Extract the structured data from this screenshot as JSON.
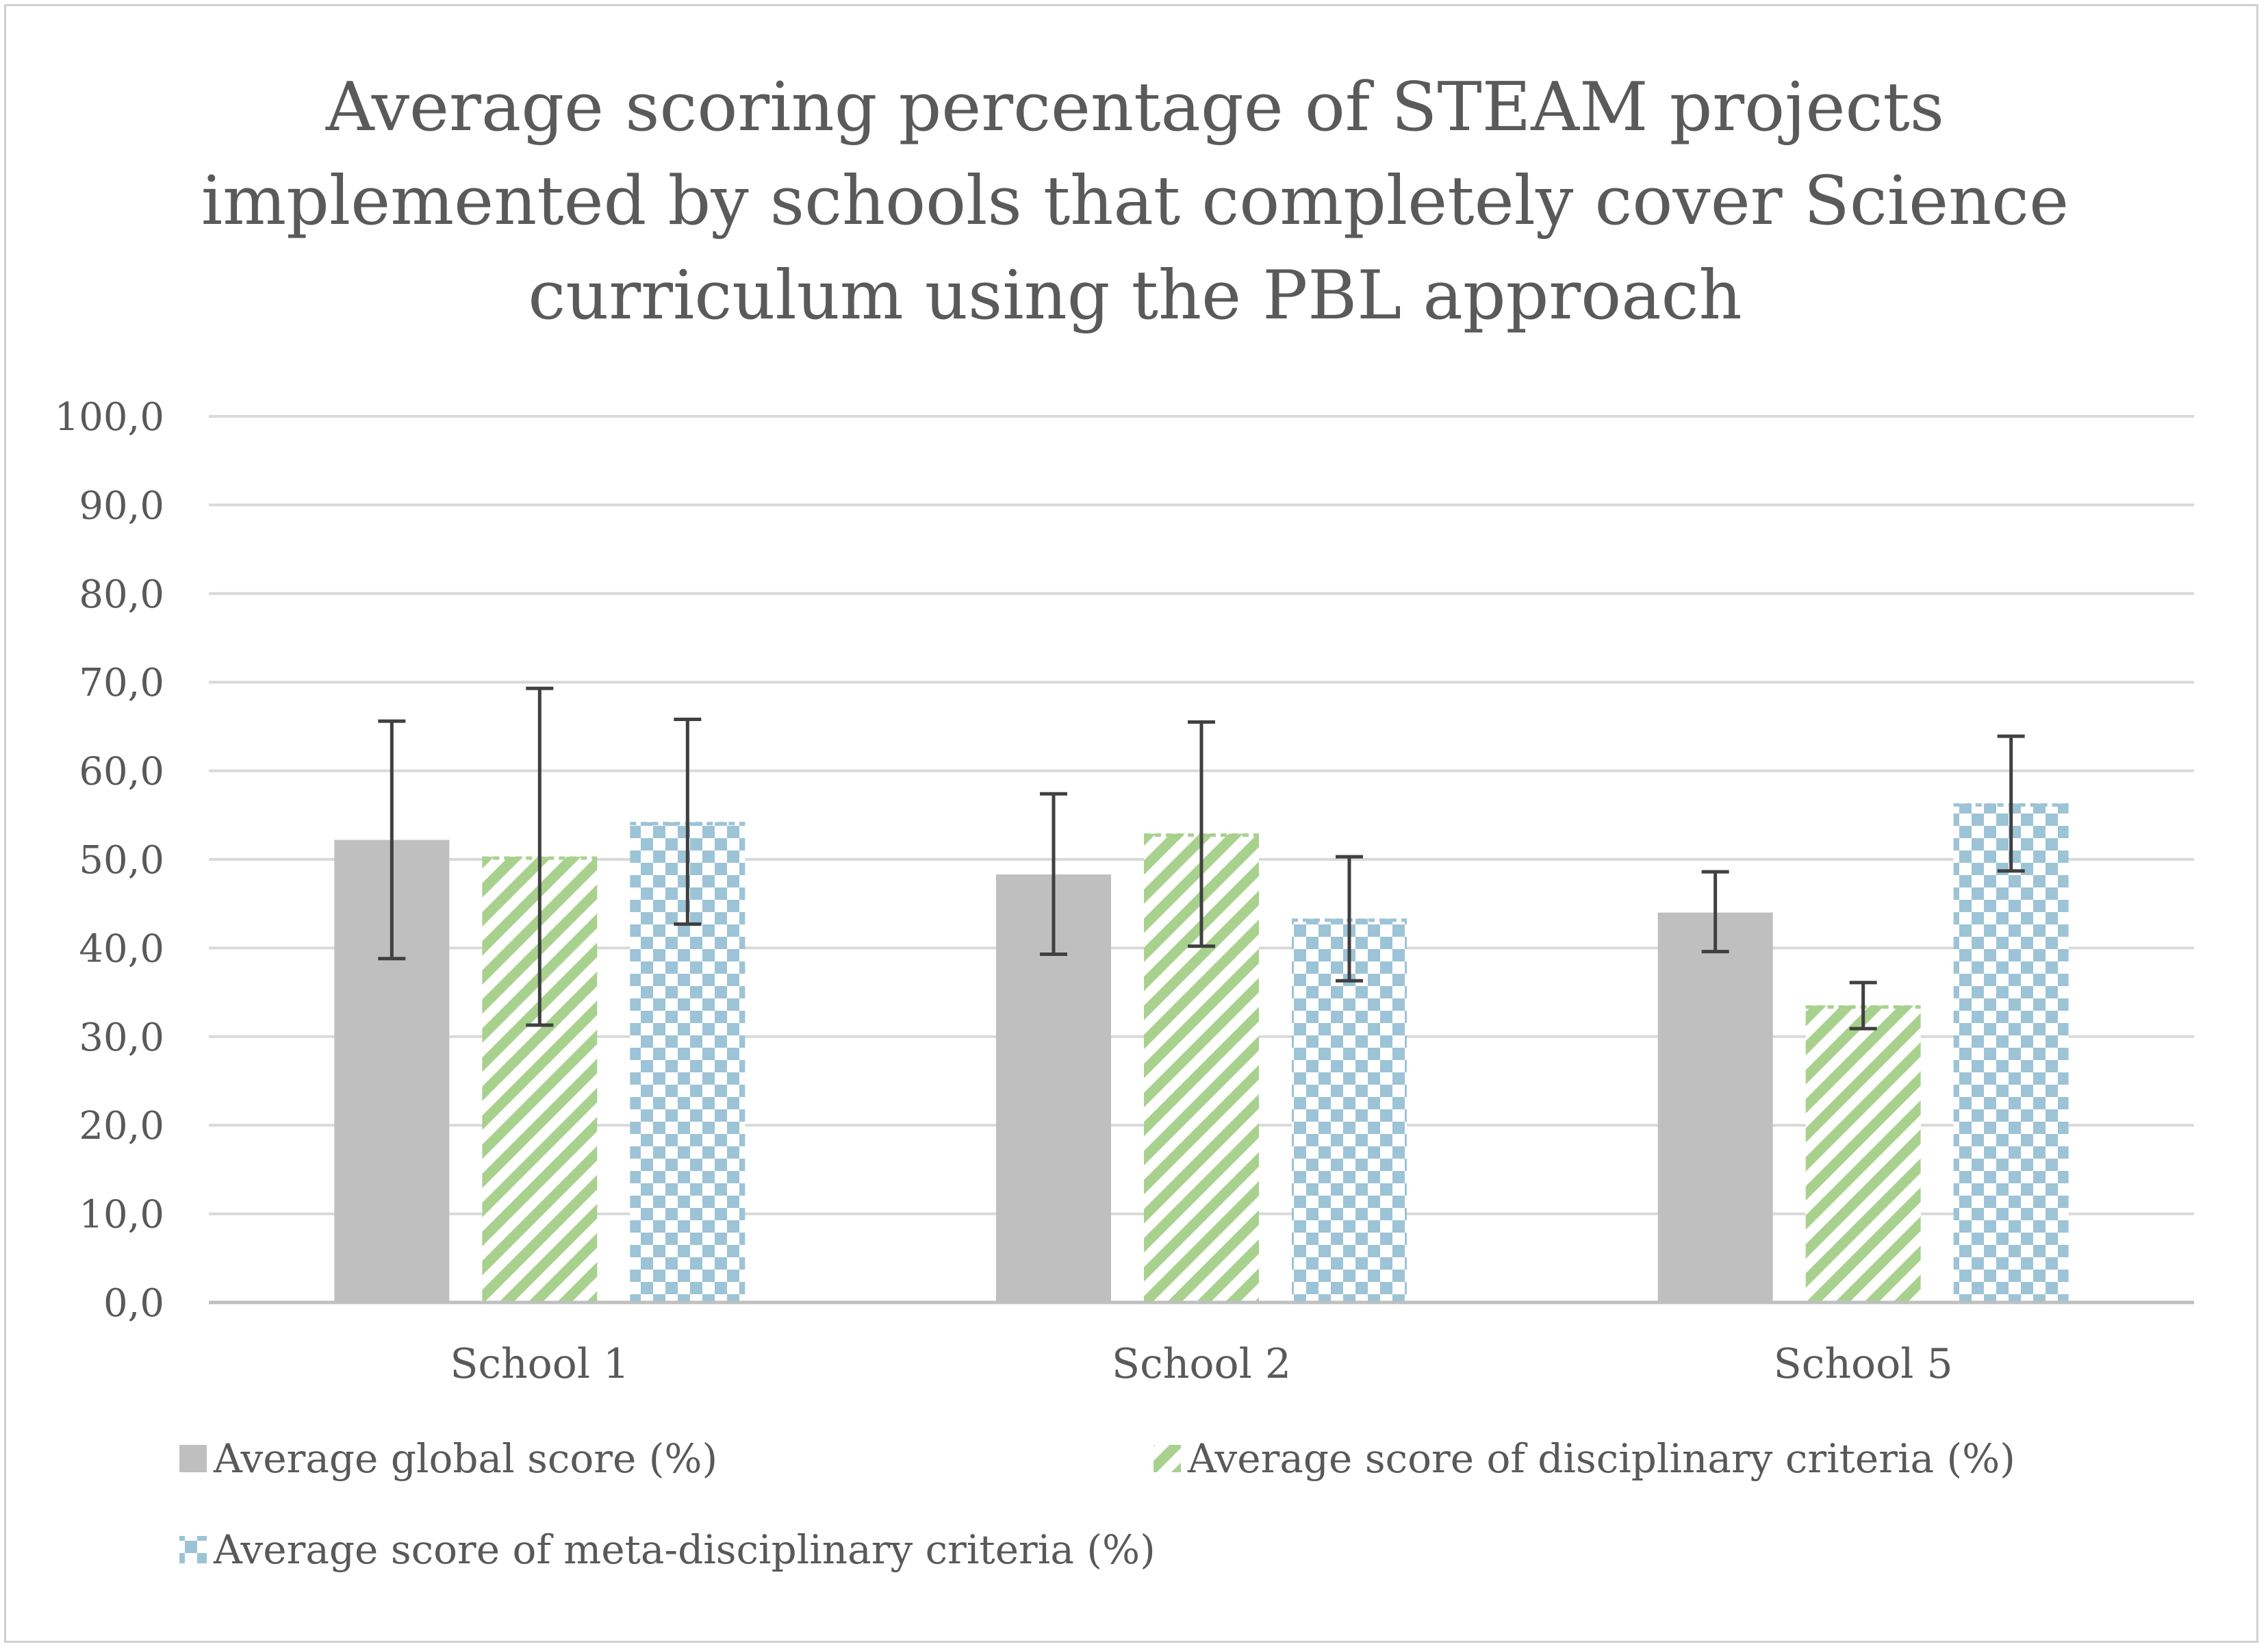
{
  "chart_data": {
    "type": "bar",
    "title_lines": [
      "Average scoring percentage of STEAM projects",
      "implemented by schools that completely cover Science",
      "curriculum using the PBL approach"
    ],
    "categories": [
      "School 1",
      "School  2",
      "School  5"
    ],
    "ylim": [
      0,
      100
    ],
    "ytick_values": [
      0,
      10,
      20,
      30,
      40,
      50,
      60,
      70,
      80,
      90,
      100
    ],
    "ytick_labels": [
      "0,0",
      "10,0",
      "20,0",
      "30,0",
      "40,0",
      "50,0",
      "60,0",
      "70,0",
      "80,0",
      "90,0",
      "100,0"
    ],
    "grid": true,
    "legend_position": "bottom",
    "series": [
      {
        "name": "Average global score (%)",
        "pattern": "solid",
        "color": "#bfbfbf",
        "values": [
          52.2,
          48.3,
          44.0
        ],
        "error_low": [
          38.8,
          39.3,
          39.6
        ],
        "error_high": [
          65.6,
          57.4,
          48.6
        ]
      },
      {
        "name": "Average score of disciplinary criteria (%)",
        "pattern": "diagonal",
        "color": "#a9d18e",
        "values": [
          50.3,
          52.9,
          33.5
        ],
        "error_low": [
          31.3,
          40.2,
          30.9
        ],
        "error_high": [
          69.3,
          65.5,
          36.1
        ]
      },
      {
        "name": "Average score of meta-disciplinary criteria (%)",
        "pattern": "checker",
        "color": "#9dc3d6",
        "values": [
          54.2,
          43.3,
          56.3
        ],
        "error_low": [
          42.7,
          36.3,
          48.7
        ],
        "error_high": [
          65.8,
          50.3,
          63.9
        ]
      }
    ]
  }
}
